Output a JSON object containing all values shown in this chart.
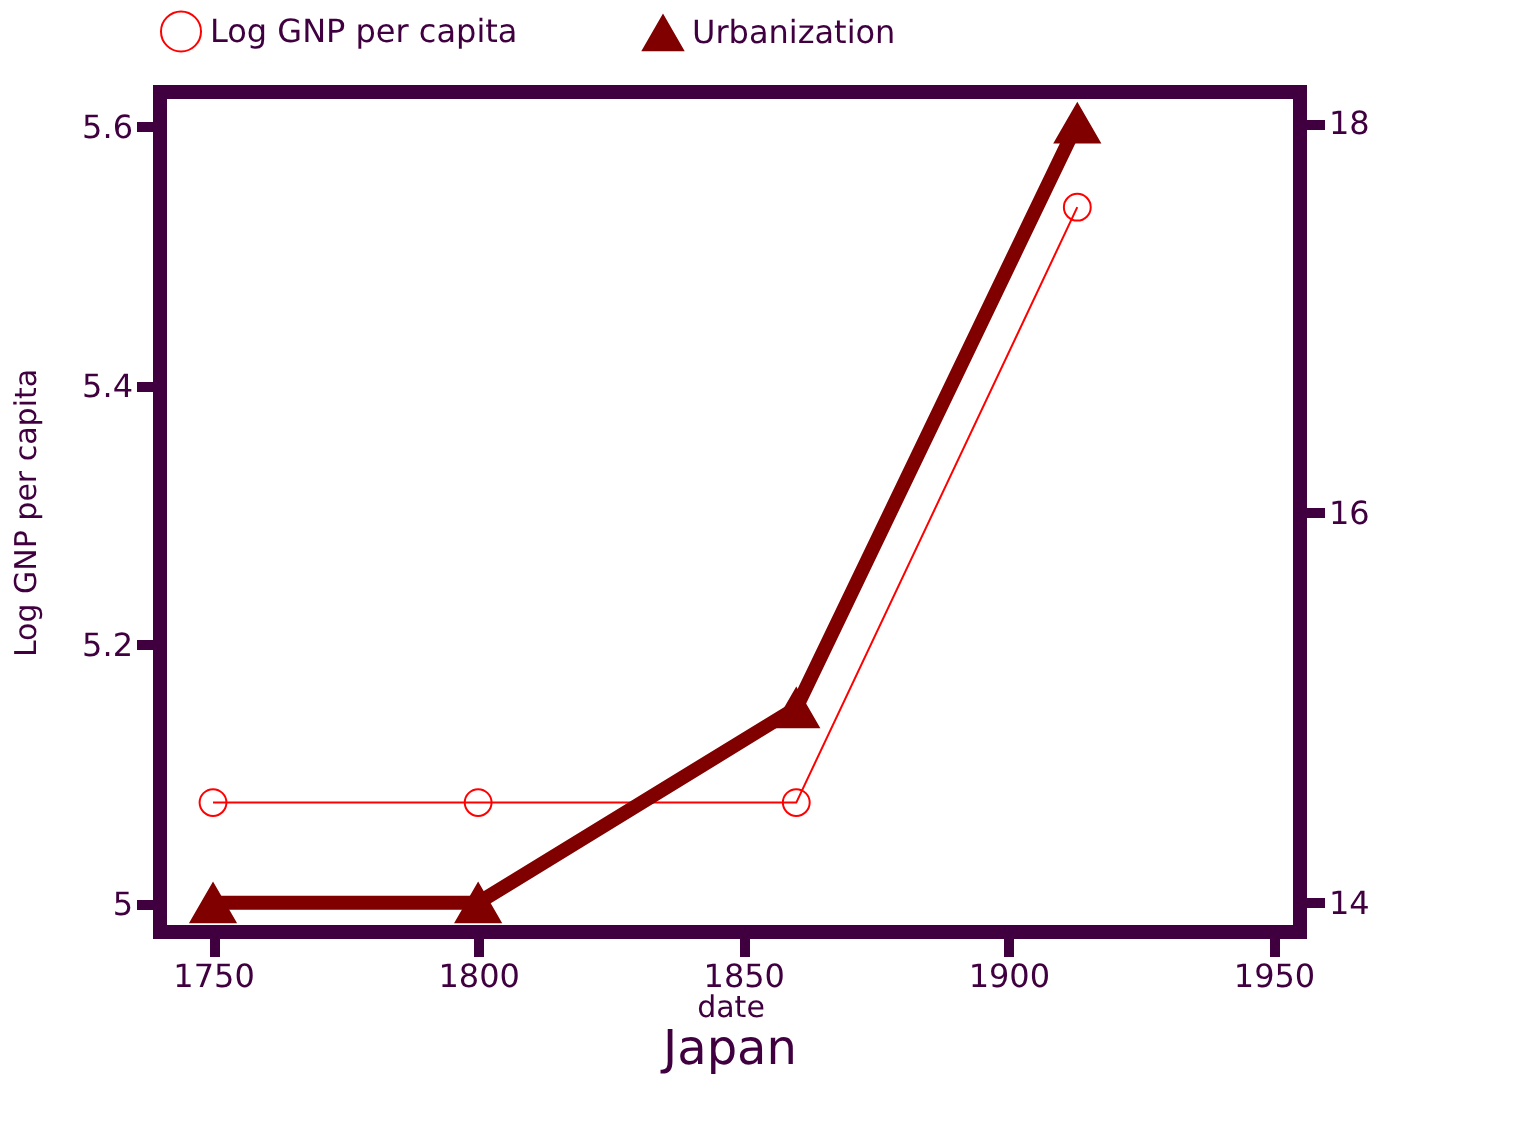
{
  "chart_data": {
    "type": "line",
    "title": "Japan",
    "xlabel": "date",
    "ylabel": "Log GNP per capita",
    "x": [
      1750,
      1800,
      1860,
      1913
    ],
    "series": [
      {
        "name": "Log GNP per capita",
        "color": "#ff0000",
        "marker": "circle",
        "values": [
          5.078,
          5.078,
          5.078,
          5.538
        ]
      },
      {
        "name": "Urbanization",
        "color": "#800000",
        "marker": "triangle",
        "axis": "y2",
        "values": [
          14,
          14,
          15,
          18
        ]
      }
    ],
    "xlim": [
      1740,
      1955
    ],
    "xticks": [
      1750,
      1800,
      1850,
      1900,
      1950
    ],
    "ylim": [
      4.978,
      5.627
    ],
    "yticks": [
      5,
      5.2,
      5.4,
      5.6
    ],
    "y2lim": [
      13.85,
      18.16
    ],
    "y2ticks": [
      14,
      16,
      18
    ],
    "legend": "top",
    "grid": false
  }
}
